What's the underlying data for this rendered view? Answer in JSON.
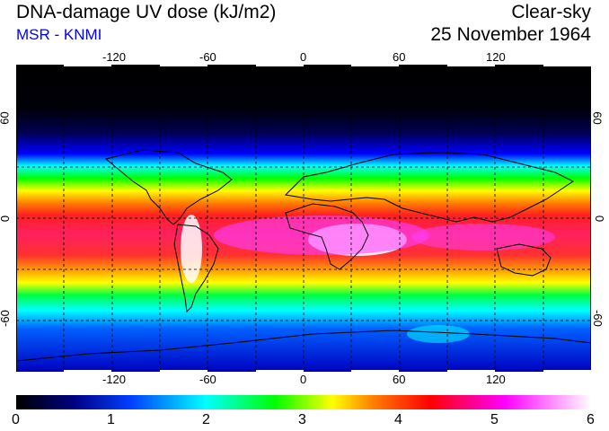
{
  "header": {
    "title": "DNA-damage UV dose (kJ/m2)",
    "credit": "MSR - KNMI",
    "condition": "Clear-sky",
    "date": "25 November 1964"
  },
  "map": {
    "lon_ticks": [
      "-120",
      "-60",
      "0",
      "60",
      "120"
    ],
    "lat_ticks": [
      "60",
      "0",
      "-60"
    ],
    "lon_range": [
      -180,
      180
    ],
    "lat_range": [
      -90,
      90
    ],
    "gridlines": "dashed"
  },
  "colorbar": {
    "labels": [
      "0",
      "1",
      "2",
      "3",
      "4",
      "5",
      "6"
    ],
    "range": [
      0,
      6
    ],
    "colors": [
      "#000000",
      "#000080",
      "#0000ff",
      "#00ffff",
      "#00ff00",
      "#ffff00",
      "#ff8000",
      "#ff0000",
      "#ff00ff",
      "#ffffff"
    ]
  }
}
